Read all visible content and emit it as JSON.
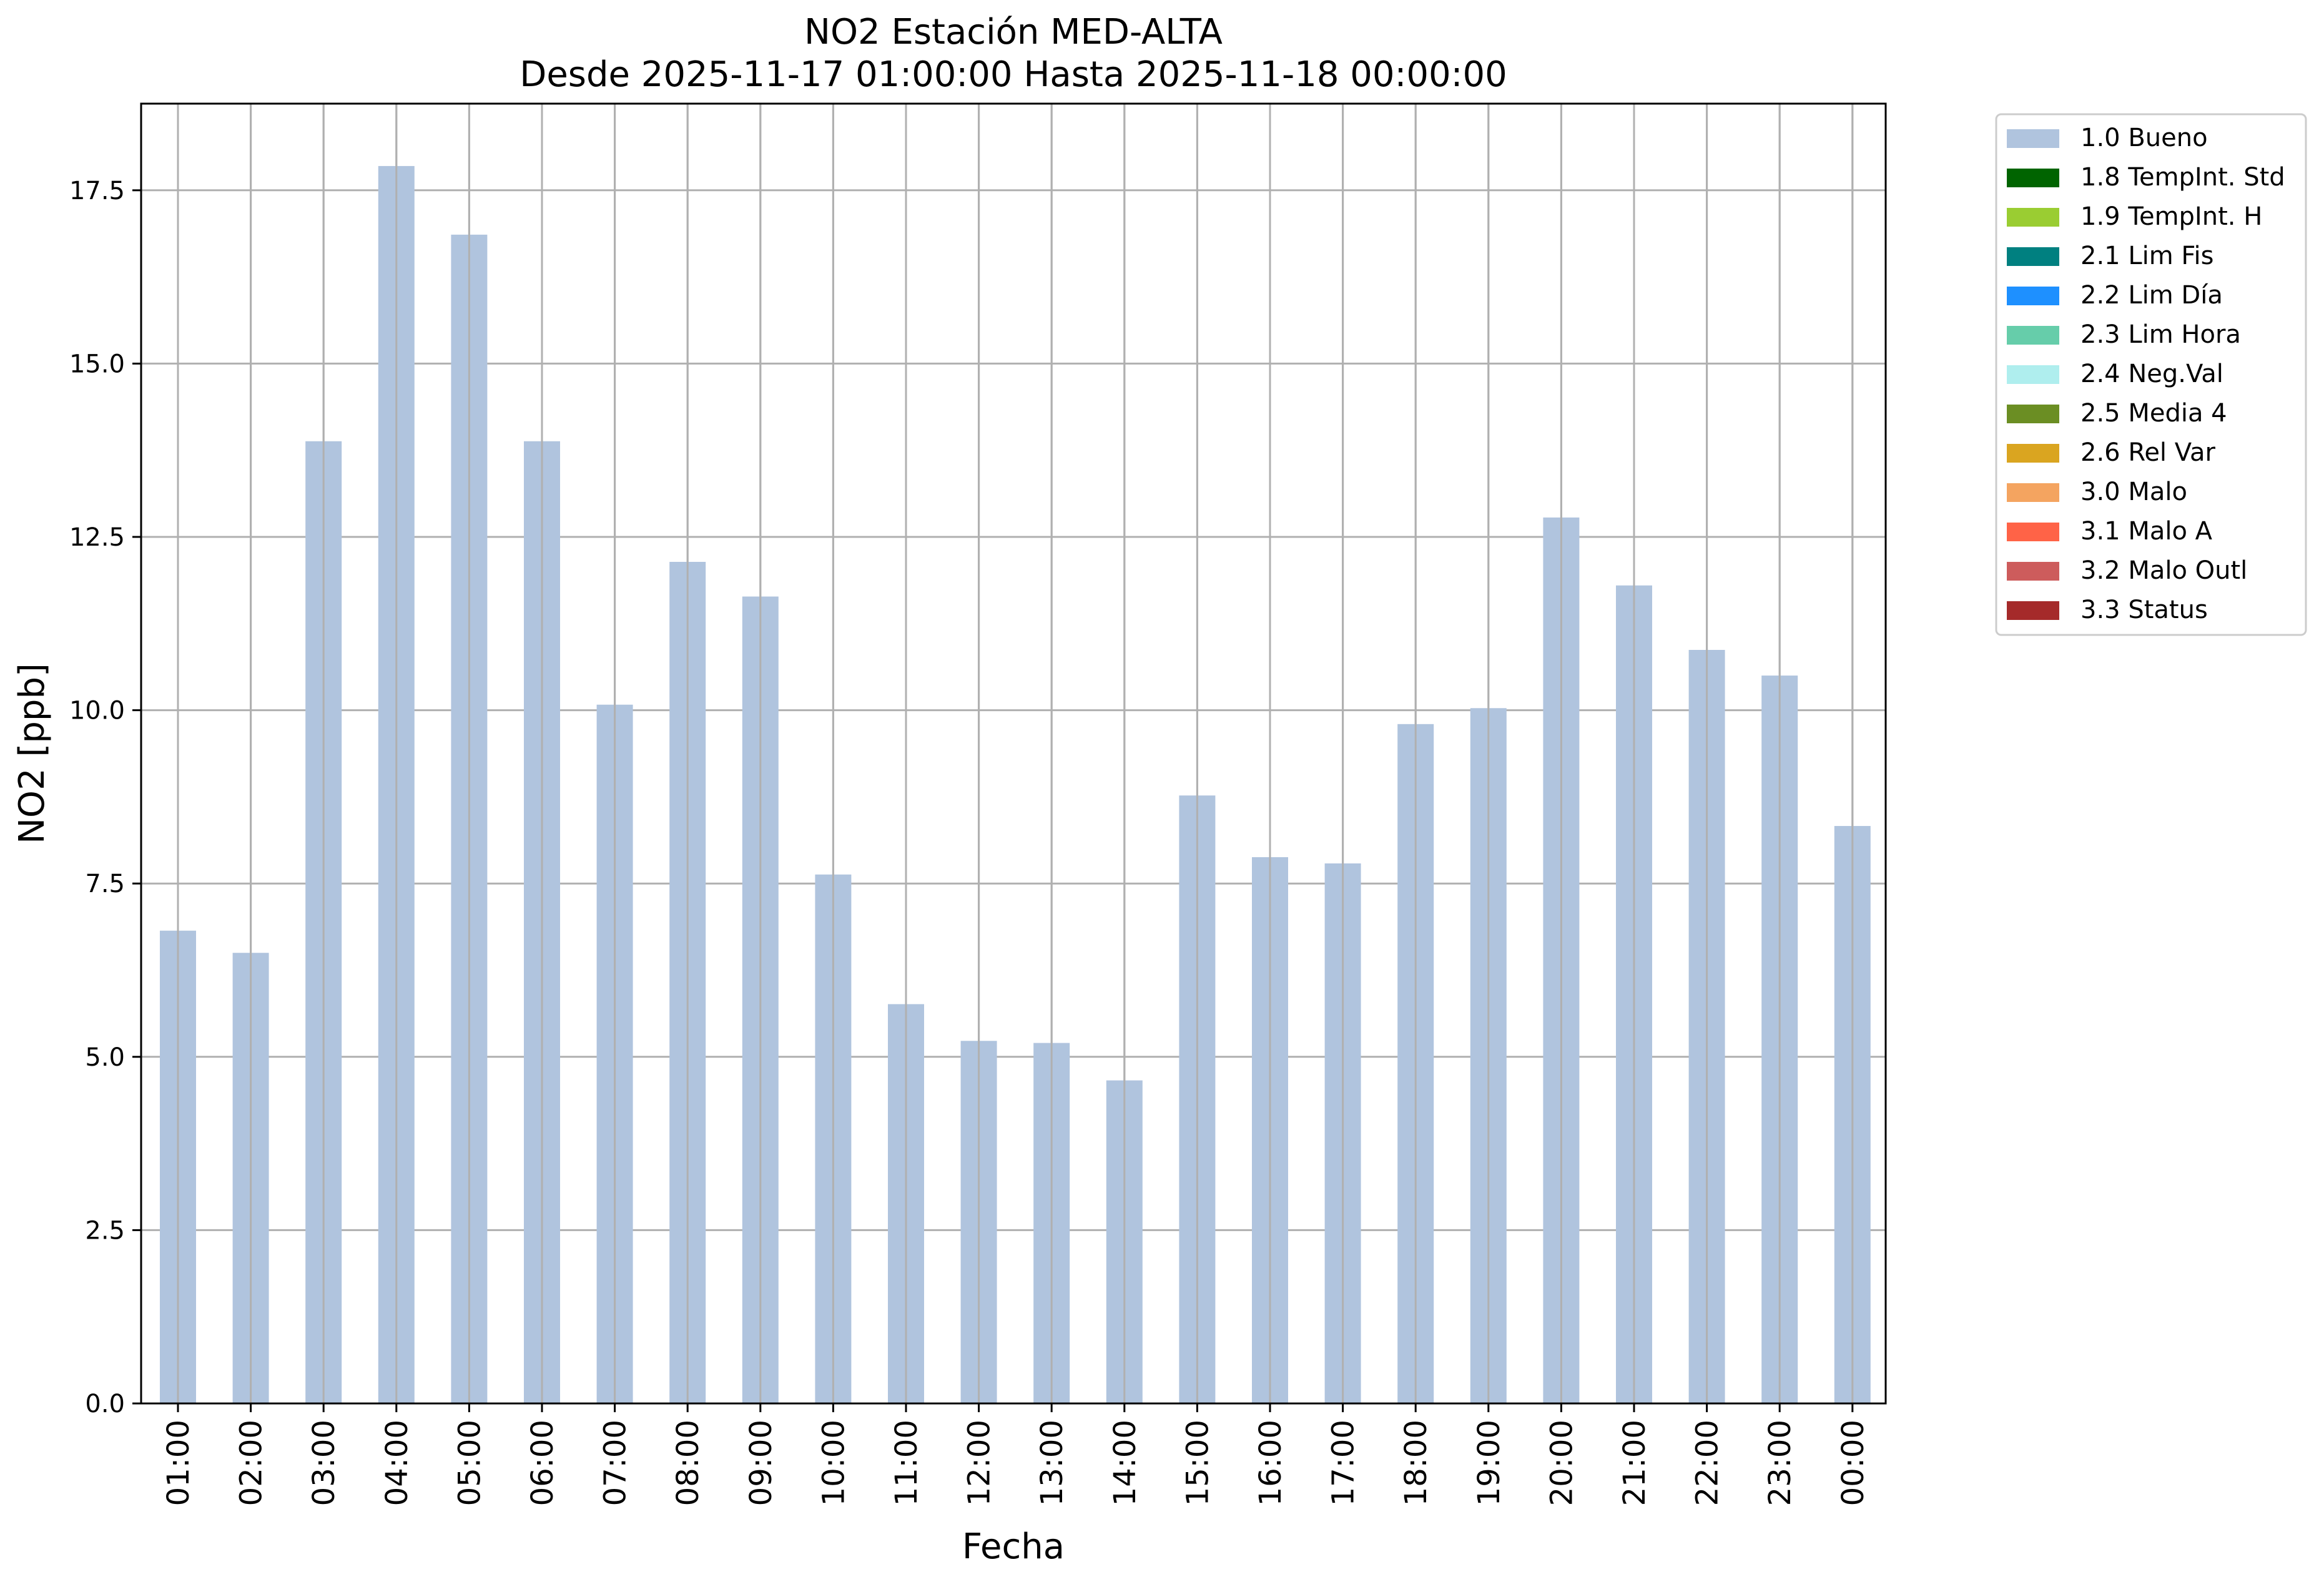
{
  "chart_data": {
    "type": "bar",
    "title": "NO2 Estación MED-ALTA",
    "subtitle": "Desde 2025-11-17 01:00:00 Hasta 2025-11-18 00:00:00",
    "xlabel": "Fecha",
    "ylabel": "NO2 [ppb]",
    "ylim": [
      0,
      18.75
    ],
    "yticks": [
      "0.0",
      "2.5",
      "5.0",
      "7.5",
      "10.0",
      "12.5",
      "15.0",
      "17.5"
    ],
    "grid": true,
    "legend_position": "outside-top-right",
    "categories": [
      "01:00",
      "02:00",
      "03:00",
      "04:00",
      "05:00",
      "06:00",
      "07:00",
      "08:00",
      "09:00",
      "10:00",
      "11:00",
      "12:00",
      "13:00",
      "14:00",
      "15:00",
      "16:00",
      "17:00",
      "18:00",
      "19:00",
      "20:00",
      "21:00",
      "22:00",
      "23:00",
      "00:00"
    ],
    "series": [
      {
        "name": "1.0 Bueno",
        "color": "#b0c4de",
        "values": [
          6.82,
          6.5,
          13.88,
          17.85,
          16.86,
          13.88,
          10.08,
          12.14,
          11.64,
          7.63,
          5.76,
          5.23,
          5.2,
          4.66,
          8.77,
          7.88,
          7.79,
          9.8,
          10.03,
          12.78,
          11.8,
          10.87,
          10.5,
          8.33
        ]
      }
    ],
    "legend": [
      {
        "label": "1.0 Bueno",
        "color": "#b0c4de"
      },
      {
        "label": "1.8 TempInt. Std",
        "color": "#006400"
      },
      {
        "label": "1.9 TempInt. H",
        "color": "#9acd32"
      },
      {
        "label": "2.1 Lim Fis",
        "color": "#008080"
      },
      {
        "label": "2.2 Lim Día",
        "color": "#1e90ff"
      },
      {
        "label": "2.3 Lim Hora",
        "color": "#66cdaa"
      },
      {
        "label": "2.4 Neg.Val",
        "color": "#afeeee"
      },
      {
        "label": "2.5 Media 4",
        "color": "#6b8e23"
      },
      {
        "label": "2.6 Rel Var",
        "color": "#daa520"
      },
      {
        "label": "3.0 Malo",
        "color": "#f4a460"
      },
      {
        "label": "3.1 Malo A",
        "color": "#ff6347"
      },
      {
        "label": "3.2 Malo Outl",
        "color": "#cd5c5c"
      },
      {
        "label": "3.3 Status",
        "color": "#a52a2a"
      }
    ]
  }
}
